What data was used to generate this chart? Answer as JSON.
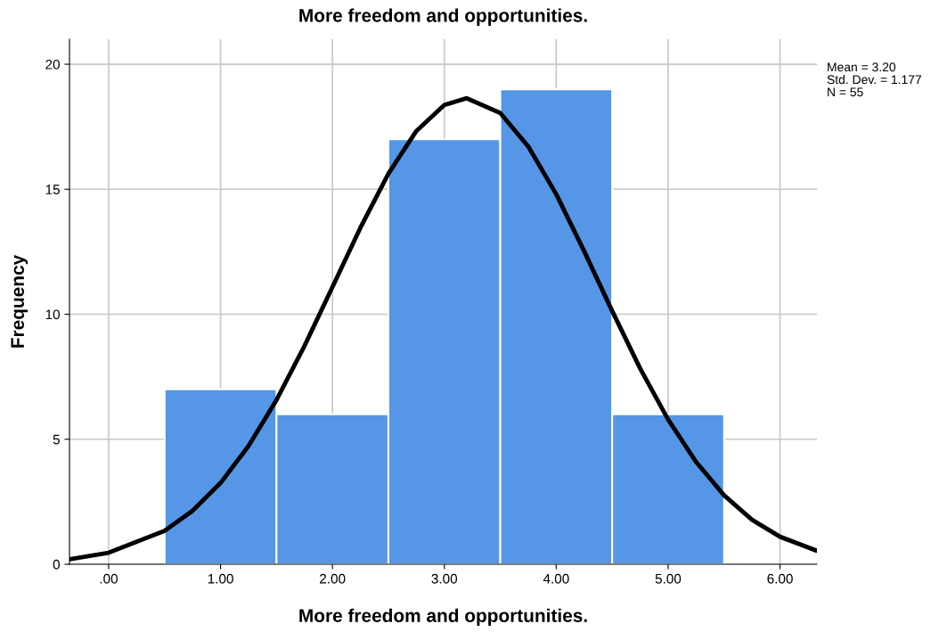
{
  "chart_data": {
    "type": "histogram",
    "title": "More freedom and opportunities.",
    "xlabel": "More freedom and opportunities.",
    "ylabel": "Frequency",
    "bins": [
      0.5,
      1.5,
      2.5,
      3.5,
      4.5,
      5.5
    ],
    "series": [
      {
        "color": "#5596e6",
        "values": [
          7,
          6,
          17,
          19,
          6
        ]
      },
      {
        "type": "line",
        "color": "#000000",
        "x": [
          -0.35,
          0,
          0.5,
          0.75,
          1,
          1.25,
          1.5,
          1.75,
          2,
          2.25,
          2.5,
          2.75,
          3,
          3.2,
          3.5,
          3.75,
          4,
          4.25,
          4.5,
          4.75,
          5,
          5.25,
          5.5,
          5.75,
          6,
          6.33
        ],
        "values": [
          0.2,
          0.46,
          1.34,
          2.14,
          3.25,
          4.73,
          6.57,
          8.73,
          11.09,
          13.46,
          15.62,
          17.33,
          18.37,
          18.64,
          18.05,
          16.71,
          14.8,
          12.52,
          10.13,
          7.83,
          5.79,
          4.09,
          2.76,
          1.78,
          1.1,
          0.54
        ]
      }
    ],
    "xlim": [
      -0.35,
      6.33
    ],
    "ylim": [
      0,
      21
    ],
    "xticks": [
      {
        "value": 0,
        "label": ".00"
      },
      {
        "value": 1,
        "label": "1.00"
      },
      {
        "value": 2,
        "label": "2.00"
      },
      {
        "value": 3,
        "label": "3.00"
      },
      {
        "value": 4,
        "label": "4.00"
      },
      {
        "value": 5,
        "label": "5.00"
      },
      {
        "value": 6,
        "label": "6.00"
      }
    ],
    "yticks": [
      0,
      5,
      10,
      15,
      20
    ],
    "grid": true,
    "annotations": [
      "Mean = 3.20",
      "Std. Dev. = 1.177",
      "N = 55"
    ]
  }
}
